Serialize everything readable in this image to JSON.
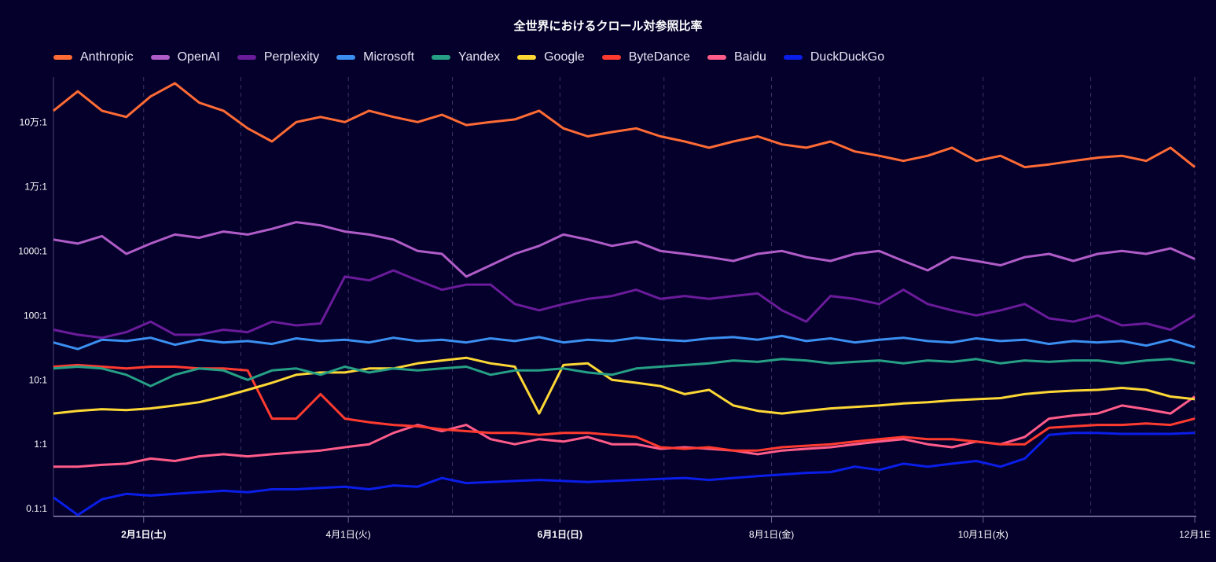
{
  "chart_data": {
    "type": "line",
    "title": "全世界におけるクロール対参照比率",
    "yscale": "log",
    "ylim": [
      0.076,
      500000
    ],
    "yticks": [
      {
        "value": 0.1,
        "label": "0.1:1"
      },
      {
        "value": 1,
        "label": "1:1"
      },
      {
        "value": 10,
        "label": "10:1"
      },
      {
        "value": 100,
        "label": "100:1"
      },
      {
        "value": 1000,
        "label": "1000:1"
      },
      {
        "value": 10000,
        "label": "1万:1"
      },
      {
        "value": 100000,
        "label": "10万:1"
      }
    ],
    "xlim": [
      "2025-01-06",
      "2025-12-01"
    ],
    "xticks": [
      {
        "date": "2025-02-01",
        "label": "2月1日(土)",
        "bold": true
      },
      {
        "date": "2025-04-01",
        "label": "4月1日(火)",
        "bold": false
      },
      {
        "date": "2025-06-01",
        "label": "6月1日(日)",
        "bold": true
      },
      {
        "date": "2025-08-01",
        "label": "8月1日(金)",
        "bold": false
      },
      {
        "date": "2025-10-01",
        "label": "10月1日(水)",
        "bold": false
      },
      {
        "date": "2025-12-01",
        "label": "12月1E",
        "bold": false
      }
    ],
    "gridlines": [
      "2025-02-01",
      "2025-03-01",
      "2025-04-01",
      "2025-05-01",
      "2025-06-01",
      "2025-07-01",
      "2025-08-01",
      "2025-09-01",
      "2025-10-01",
      "2025-11-01",
      "2025-12-01"
    ],
    "x_start": "2025-01-06",
    "x_step_days": 7,
    "legend_position": "top-left",
    "series": [
      {
        "name": "Anthropic",
        "color": "#ff6b35",
        "values": [
          150000,
          300000,
          150000,
          120000,
          250000,
          400000,
          200000,
          150000,
          80000,
          50000,
          100000,
          120000,
          100000,
          150000,
          120000,
          100000,
          130000,
          90000,
          100000,
          110000,
          150000,
          80000,
          60000,
          70000,
          80000,
          60000,
          50000,
          40000,
          50000,
          60000,
          45000,
          40000,
          50000,
          35000,
          30000,
          25000,
          30000,
          40000,
          25000,
          30000,
          20000,
          22000,
          25000,
          28000,
          30000,
          25000,
          40000,
          20000
        ]
      },
      {
        "name": "OpenAI",
        "color": "#b05cc8",
        "values": [
          1500,
          1300,
          1700,
          900,
          1300,
          1800,
          1600,
          2000,
          1800,
          2200,
          2800,
          2500,
          2000,
          1800,
          1500,
          1000,
          900,
          400,
          600,
          900,
          1200,
          1800,
          1500,
          1200,
          1400,
          1000,
          900,
          800,
          700,
          900,
          1000,
          800,
          700,
          900,
          1000,
          700,
          500,
          800,
          700,
          600,
          800,
          900,
          700,
          900,
          1000,
          900,
          1100,
          750
        ]
      },
      {
        "name": "Perplexity",
        "color": "#6a1b9a",
        "values": [
          60,
          50,
          45,
          55,
          80,
          50,
          50,
          60,
          55,
          80,
          70,
          75,
          400,
          350,
          500,
          350,
          250,
          300,
          300,
          150,
          120,
          150,
          180,
          200,
          250,
          180,
          200,
          180,
          200,
          220,
          120,
          80,
          200,
          180,
          150,
          250,
          150,
          120,
          100,
          120,
          150,
          90,
          80,
          100,
          70,
          75,
          60,
          100
        ]
      },
      {
        "name": "Microsoft",
        "color": "#3b8ff0",
        "values": [
          38,
          30,
          42,
          40,
          45,
          35,
          42,
          38,
          40,
          36,
          44,
          40,
          42,
          38,
          45,
          40,
          42,
          38,
          44,
          40,
          46,
          38,
          42,
          40,
          45,
          42,
          40,
          44,
          46,
          42,
          48,
          40,
          44,
          38,
          42,
          45,
          40,
          38,
          44,
          40,
          42,
          36,
          40,
          38,
          40,
          34,
          42,
          32
        ]
      },
      {
        "name": "Yandex",
        "color": "#26a085",
        "values": [
          15,
          16,
          15,
          12,
          8,
          12,
          15,
          14,
          10,
          14,
          15,
          12,
          16,
          13,
          15,
          14,
          15,
          16,
          12,
          14,
          14,
          15,
          13,
          12,
          15,
          16,
          17,
          18,
          20,
          19,
          21,
          20,
          18,
          19,
          20,
          18,
          20,
          19,
          21,
          18,
          20,
          19,
          20,
          20,
          18,
          20,
          21,
          18
        ]
      },
      {
        "name": "Google",
        "color": "#fdd835",
        "values": [
          3.0,
          3.3,
          3.5,
          3.4,
          3.6,
          4.0,
          4.5,
          5.5,
          7,
          9,
          12,
          13,
          13,
          15,
          15,
          18,
          20,
          22,
          18,
          16,
          3,
          17,
          18,
          10,
          9,
          8,
          6,
          7,
          4,
          3.3,
          3,
          3.3,
          3.6,
          3.8,
          4,
          4.3,
          4.5,
          4.8,
          5,
          5.2,
          6,
          6.5,
          6.8,
          7,
          7.5,
          7,
          5.5,
          5.0
        ]
      },
      {
        "name": "ByteDance",
        "color": "#ff3b30",
        "values": [
          16,
          17,
          16,
          15,
          16,
          16,
          15,
          15,
          14,
          2.5,
          2.5,
          6,
          2.5,
          2.2,
          2,
          1.9,
          1.7,
          1.6,
          1.5,
          1.5,
          1.4,
          1.5,
          1.5,
          1.4,
          1.3,
          0.9,
          0.85,
          0.9,
          0.8,
          0.8,
          0.9,
          0.95,
          1.0,
          1.1,
          1.2,
          1.3,
          1.2,
          1.2,
          1.1,
          1.0,
          1.0,
          1.8,
          1.9,
          2.0,
          2.0,
          2.1,
          2.0,
          2.5
        ]
      },
      {
        "name": "Baidu",
        "color": "#ff5c8a",
        "values": [
          0.45,
          0.45,
          0.48,
          0.5,
          0.6,
          0.55,
          0.65,
          0.7,
          0.65,
          0.7,
          0.75,
          0.8,
          0.9,
          1.0,
          1.5,
          2,
          1.6,
          2,
          1.2,
          1.0,
          1.2,
          1.1,
          1.3,
          1.0,
          1.0,
          0.85,
          0.9,
          0.85,
          0.8,
          0.7,
          0.8,
          0.85,
          0.9,
          1.0,
          1.1,
          1.2,
          1.0,
          0.9,
          1.1,
          1.0,
          1.3,
          2.5,
          2.8,
          3,
          4,
          3.5,
          3,
          5.5
        ]
      },
      {
        "name": "DuckDuckGo",
        "color": "#0a1ee8",
        "values": [
          0.15,
          0.08,
          0.14,
          0.17,
          0.16,
          0.17,
          0.18,
          0.19,
          0.18,
          0.2,
          0.2,
          0.21,
          0.22,
          0.2,
          0.23,
          0.22,
          0.3,
          0.25,
          0.26,
          0.27,
          0.28,
          0.27,
          0.26,
          0.27,
          0.28,
          0.29,
          0.3,
          0.28,
          0.3,
          0.32,
          0.34,
          0.36,
          0.37,
          0.45,
          0.4,
          0.5,
          0.45,
          0.5,
          0.55,
          0.45,
          0.6,
          1.4,
          1.5,
          1.5,
          1.45,
          1.45,
          1.45,
          1.5
        ]
      }
    ]
  }
}
